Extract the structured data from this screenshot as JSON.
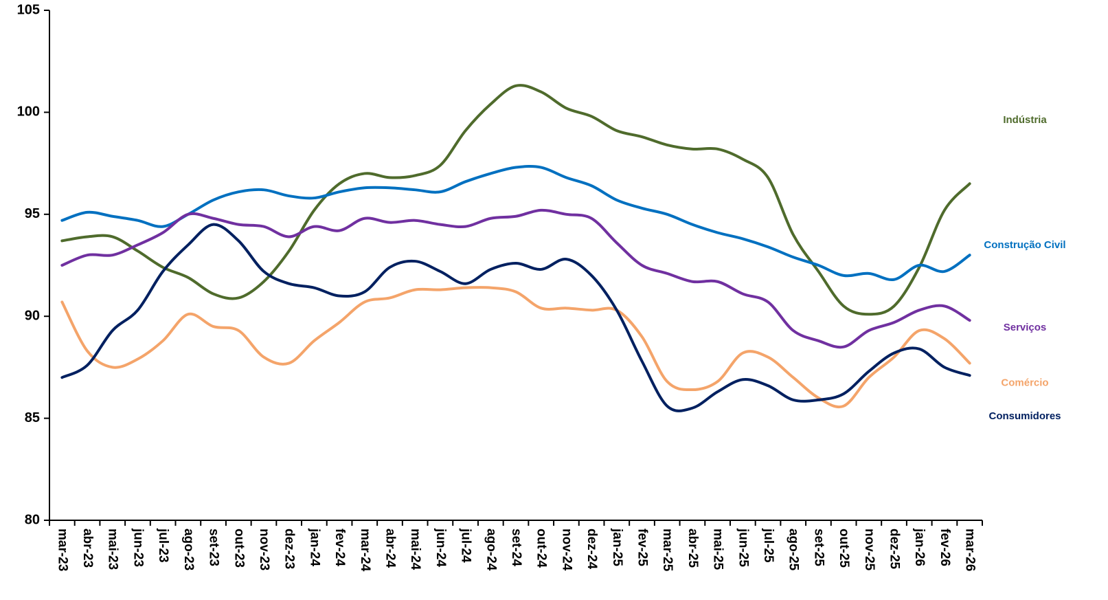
{
  "chart_data": {
    "type": "line",
    "categories": [
      "mar-23",
      "abr-23",
      "mai-23",
      "jun-23",
      "jul-23",
      "ago-23",
      "set-23",
      "out-23",
      "nov-23",
      "dez-23",
      "jan-24",
      "fev-24",
      "mar-24",
      "abr-24",
      "mai-24",
      "jun-24",
      "jul-24",
      "ago-24",
      "set-24",
      "out-24",
      "nov-24",
      "dez-24",
      "jan-25",
      "fev-25",
      "mar-25",
      "abr-25",
      "mai-25",
      "jun-25",
      "jul-25",
      "ago-25",
      "set-25",
      "out-25",
      "nov-25",
      "dez-25",
      "jan-26",
      "fev-26",
      "mar-26"
    ],
    "series": [
      {
        "name": "Indústria",
        "color": "#4f6b2c",
        "values": [
          93.7,
          93.9,
          93.9,
          93.2,
          92.4,
          91.9,
          91.1,
          90.9,
          91.7,
          93.2,
          95.2,
          96.5,
          97.0,
          96.8,
          96.9,
          97.4,
          99.1,
          100.4,
          101.3,
          101.0,
          100.2,
          99.8,
          99.1,
          98.8,
          98.4,
          98.2,
          98.2,
          97.7,
          96.8,
          94.0,
          92.2,
          90.5,
          90.1,
          90.5,
          92.4,
          95.2,
          96.5
        ]
      },
      {
        "name": "Construção Civil",
        "color": "#0070c0",
        "values": [
          94.7,
          95.1,
          94.9,
          94.7,
          94.4,
          95.0,
          95.7,
          96.1,
          96.2,
          95.9,
          95.8,
          96.1,
          96.3,
          96.3,
          96.2,
          96.1,
          96.6,
          97.0,
          97.3,
          97.3,
          96.8,
          96.4,
          95.7,
          95.3,
          95.0,
          94.5,
          94.1,
          93.8,
          93.4,
          92.9,
          92.5,
          92.0,
          92.1,
          91.8,
          92.5,
          92.2,
          93.0
        ]
      },
      {
        "name": "Serviços",
        "color": "#7030a0",
        "values": [
          92.5,
          93.0,
          93.0,
          93.5,
          94.1,
          95.0,
          94.8,
          94.5,
          94.4,
          93.9,
          94.4,
          94.2,
          94.8,
          94.6,
          94.7,
          94.5,
          94.4,
          94.8,
          94.9,
          95.2,
          95.0,
          94.8,
          93.6,
          92.5,
          92.1,
          91.7,
          91.7,
          91.1,
          90.7,
          89.3,
          88.8,
          88.5,
          89.3,
          89.7,
          90.3,
          90.5,
          89.8
        ]
      },
      {
        "name": "Comércio",
        "color": "#f4a46a",
        "values": [
          90.7,
          88.3,
          87.5,
          87.9,
          88.8,
          90.1,
          89.5,
          89.3,
          88.0,
          87.7,
          88.8,
          89.7,
          90.7,
          90.9,
          91.3,
          91.3,
          91.4,
          91.4,
          91.2,
          90.4,
          90.4,
          90.3,
          90.3,
          89.0,
          86.8,
          86.4,
          86.8,
          88.2,
          88.0,
          87.0,
          86.0,
          85.6,
          87.0,
          88.0,
          89.3,
          88.9,
          87.7
        ]
      },
      {
        "name": "Consumidores",
        "color": "#002060",
        "values": [
          87.0,
          87.6,
          89.3,
          90.3,
          92.2,
          93.5,
          94.5,
          93.7,
          92.2,
          91.6,
          91.4,
          91.0,
          91.2,
          92.4,
          92.7,
          92.2,
          91.6,
          92.3,
          92.6,
          92.3,
          92.8,
          92.0,
          90.3,
          87.8,
          85.6,
          85.5,
          86.3,
          86.9,
          86.6,
          85.9,
          85.9,
          86.2,
          87.3,
          88.2,
          88.4,
          87.5,
          87.1
        ]
      }
    ],
    "ylim": [
      80,
      105
    ],
    "yticks": [
      80,
      85,
      90,
      95,
      100,
      105
    ],
    "grid": false
  }
}
